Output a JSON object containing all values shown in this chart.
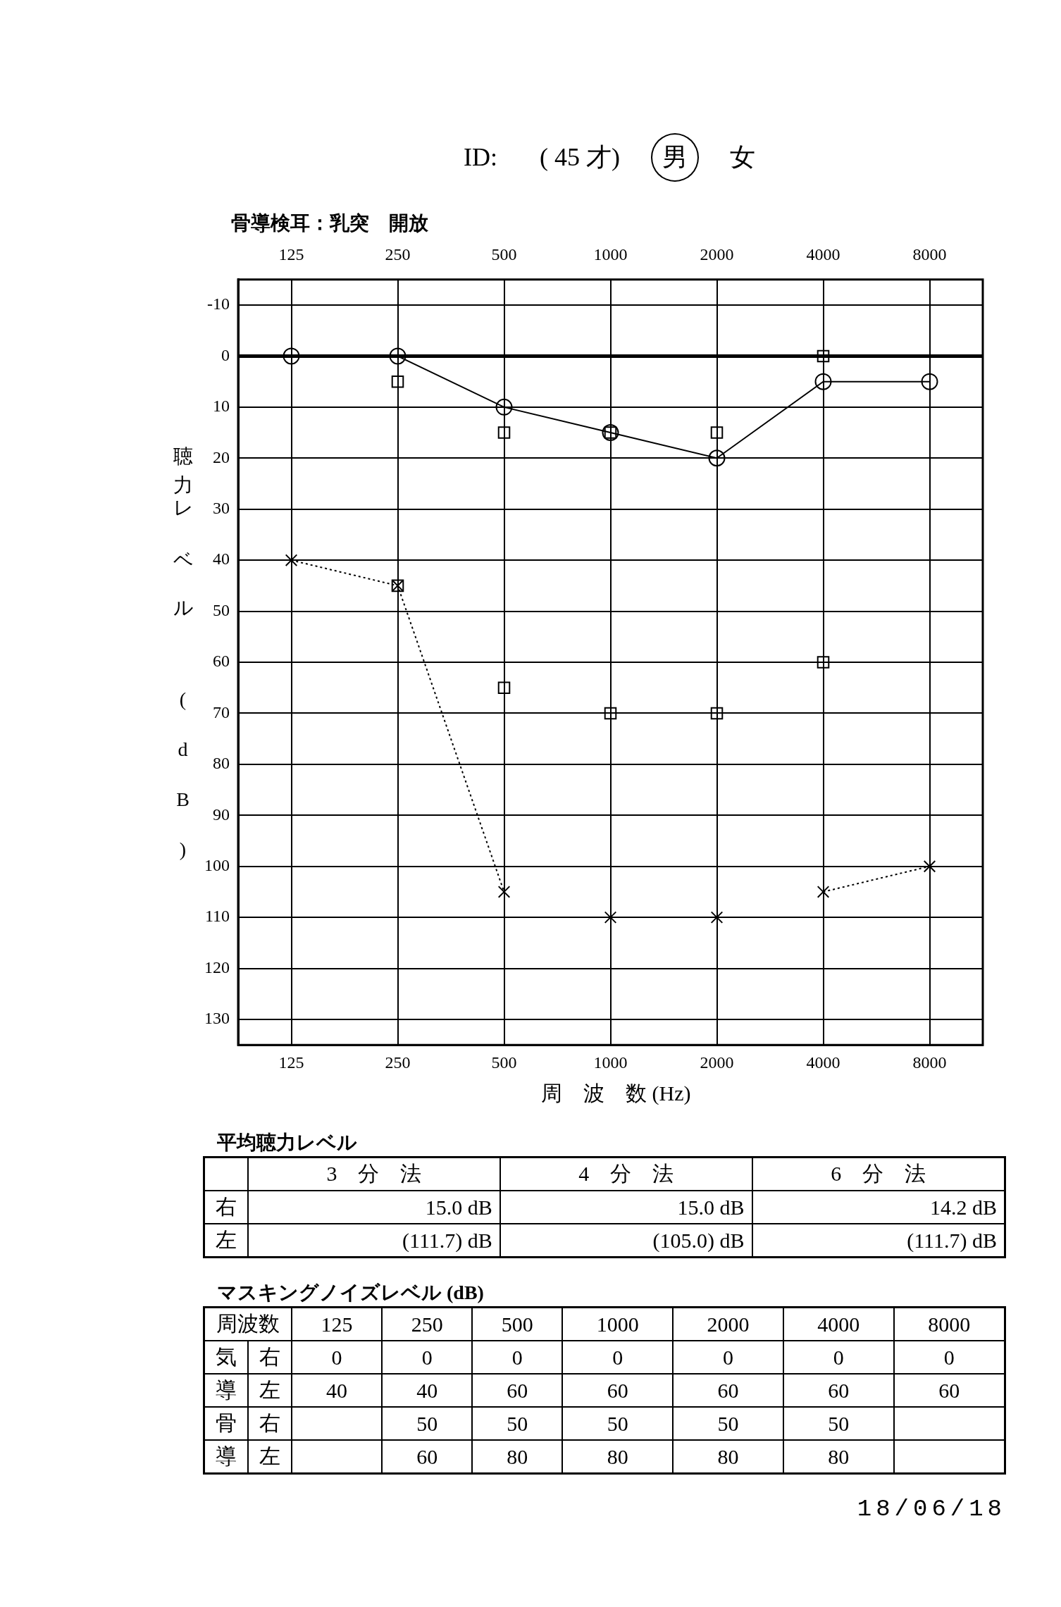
{
  "chart_data": [
    {
      "type": "line",
      "title": "骨導検耳：乳突　開放",
      "xlabel": "周　波　数 (Hz)",
      "ylabel": "聴力レベル (dB)",
      "annotations": [
        "ID:",
        "( 45 才)",
        "男",
        "女"
      ],
      "categories": [
        "125",
        "250",
        "500",
        "1000",
        "2000",
        "4000",
        "8000"
      ],
      "ylim": [
        135,
        -15
      ],
      "yticks": [
        -10,
        0,
        10,
        20,
        30,
        40,
        50,
        60,
        70,
        80,
        90,
        100,
        110,
        120,
        130
      ],
      "grid": true,
      "ref_lines": [
        {
          "axis": "y",
          "value": 0,
          "color": "#000000"
        }
      ],
      "series": [
        {
          "type": "line",
          "color": "#000000",
          "marker": "circle",
          "line_style": "solid",
          "values": [
            0,
            0,
            10,
            15,
            20,
            5,
            5
          ]
        },
        {
          "type": "line",
          "color": "#000000",
          "marker": "cross",
          "line_style": "dotted",
          "values": [
            40,
            45,
            105,
            null,
            null,
            105,
            100
          ]
        },
        {
          "type": "scatter",
          "color": "#000000",
          "marker": "cross",
          "values": [
            null,
            null,
            null,
            110,
            110,
            null,
            null
          ]
        },
        {
          "type": "scatter",
          "color": "#000000",
          "marker": "square",
          "values": [
            null,
            5,
            15,
            15,
            15,
            0,
            null
          ]
        },
        {
          "type": "scatter",
          "color": "#000000",
          "marker": "square",
          "values": [
            null,
            45,
            65,
            70,
            70,
            60,
            null
          ]
        }
      ]
    },
    {
      "type": "heatmap",
      "title": "平均聴力レベル",
      "categories": [
        "3　分　法",
        "4　分　法",
        "6　分　法"
      ],
      "y_categories": [
        "右",
        "左"
      ],
      "cells": [
        [
          15.0,
          15.0,
          14.2
        ],
        [
          111.7,
          105.0,
          111.7
        ]
      ],
      "cell_labels": [
        [
          "15.0 dB",
          "15.0 dB",
          "14.2 dB"
        ],
        [
          "(111.7) dB",
          "(105.0) dB",
          "(111.7) dB"
        ]
      ]
    },
    {
      "type": "heatmap",
      "title": "マスキングノイズレベル (dB)",
      "xlabel": "周波数",
      "categories": [
        "125",
        "250",
        "500",
        "1000",
        "2000",
        "4000",
        "8000"
      ],
      "y_categories": [
        "気",
        "導",
        "骨",
        "導"
      ],
      "y2_categories": [
        "右",
        "左",
        "右",
        "左"
      ],
      "cells": [
        [
          0,
          0,
          0,
          0,
          0,
          0,
          0
        ],
        [
          40,
          40,
          60,
          60,
          60,
          60,
          60
        ],
        [
          null,
          50,
          50,
          50,
          50,
          50,
          null
        ],
        [
          null,
          60,
          80,
          80,
          80,
          80,
          null
        ]
      ],
      "data_labels": true,
      "annotations": [
        "18/06/18"
      ]
    }
  ]
}
